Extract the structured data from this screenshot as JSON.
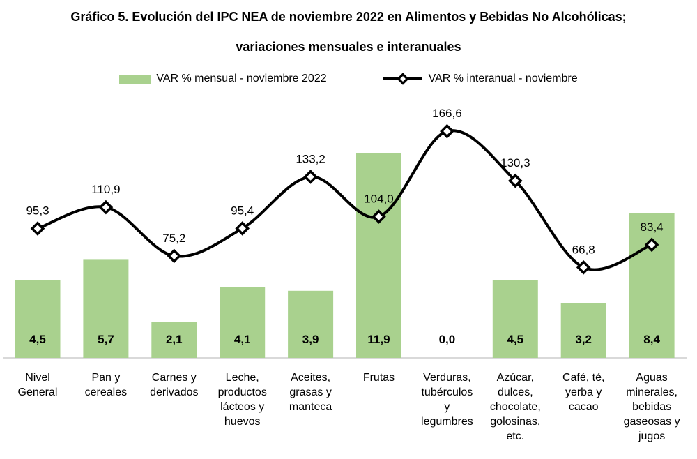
{
  "header": {
    "title_line1": "Gráfico 5. Evolución del IPC NEA de noviembre 2022 en Alimentos y Bebidas No Alcohólicas;",
    "title_line2": "variaciones mensuales e interanuales"
  },
  "legend": {
    "items": [
      {
        "label": "VAR % mensual - noviembre 2022",
        "series": "bar"
      },
      {
        "label": "VAR % interanual - noviembre",
        "series": "line"
      }
    ]
  },
  "colors": {
    "bar_fill": "#A9D18E",
    "line_stroke": "#000000",
    "marker_fill": "#FFFFFF",
    "marker_stroke": "#000000",
    "axis_line": "#D9D9D9",
    "text": "#000000"
  },
  "chart_data": {
    "type": "combo",
    "title": "Gráfico 5. Evolución del IPC NEA de noviembre 2022 en Alimentos y Bebidas No Alcohólicas; variaciones mensuales e interanuales",
    "xlabel": "",
    "ylabel": "",
    "grid": false,
    "legend_position": "top",
    "bar_axis_range": [
      0,
      15
    ],
    "line_axis_range": [
      0,
      190
    ],
    "categories": [
      "Nivel General",
      "Pan y cereales",
      "Carnes y derivados",
      "Leche, productos lácteos y huevos",
      "Aceites, grasas y manteca",
      "Frutas",
      "Verduras, tubérculos y legumbres",
      "Azúcar, dulces, chocolate, golosinas, etc.",
      "Café, té, yerba y cacao",
      "Aguas minerales, bebidas gaseosas y jugos"
    ],
    "category_label_lines": [
      [
        "Nivel",
        "General"
      ],
      [
        "Pan y",
        "cereales"
      ],
      [
        "Carnes y",
        "derivados"
      ],
      [
        "Leche,",
        "productos",
        "lácteos y",
        "huevos"
      ],
      [
        "Aceites,",
        "grasas y",
        "manteca"
      ],
      [
        "Frutas"
      ],
      [
        "Verduras,",
        "tubérculos",
        "y",
        "legumbres"
      ],
      [
        "Azúcar,",
        "dulces,",
        "chocolate,",
        "golosinas,",
        "etc."
      ],
      [
        "Café, té,",
        "yerba y",
        "cacao"
      ],
      [
        "Aguas",
        "minerales,",
        "bebidas",
        "gaseosas y",
        "jugos"
      ]
    ],
    "series": [
      {
        "name": "VAR % mensual - noviembre 2022",
        "type": "bar",
        "color": "#A9D18E",
        "values": [
          4.5,
          5.7,
          2.1,
          4.1,
          3.9,
          11.9,
          0.0,
          4.5,
          3.2,
          8.4
        ],
        "value_labels": [
          "4,5",
          "5,7",
          "2,1",
          "4,1",
          "3,9",
          "11,9",
          "0,0",
          "4,5",
          "3,2",
          "8,4"
        ]
      },
      {
        "name": "VAR % interanual - noviembre",
        "type": "line",
        "color": "#000000",
        "marker": "diamond",
        "values": [
          95.3,
          110.9,
          75.2,
          95.4,
          133.2,
          104.0,
          166.6,
          130.3,
          66.8,
          83.4
        ],
        "value_labels": [
          "95,3",
          "110,9",
          "75,2",
          "95,4",
          "133,2",
          "104,0",
          "166,6",
          "130,3",
          "66,8",
          "83,4"
        ]
      }
    ]
  }
}
